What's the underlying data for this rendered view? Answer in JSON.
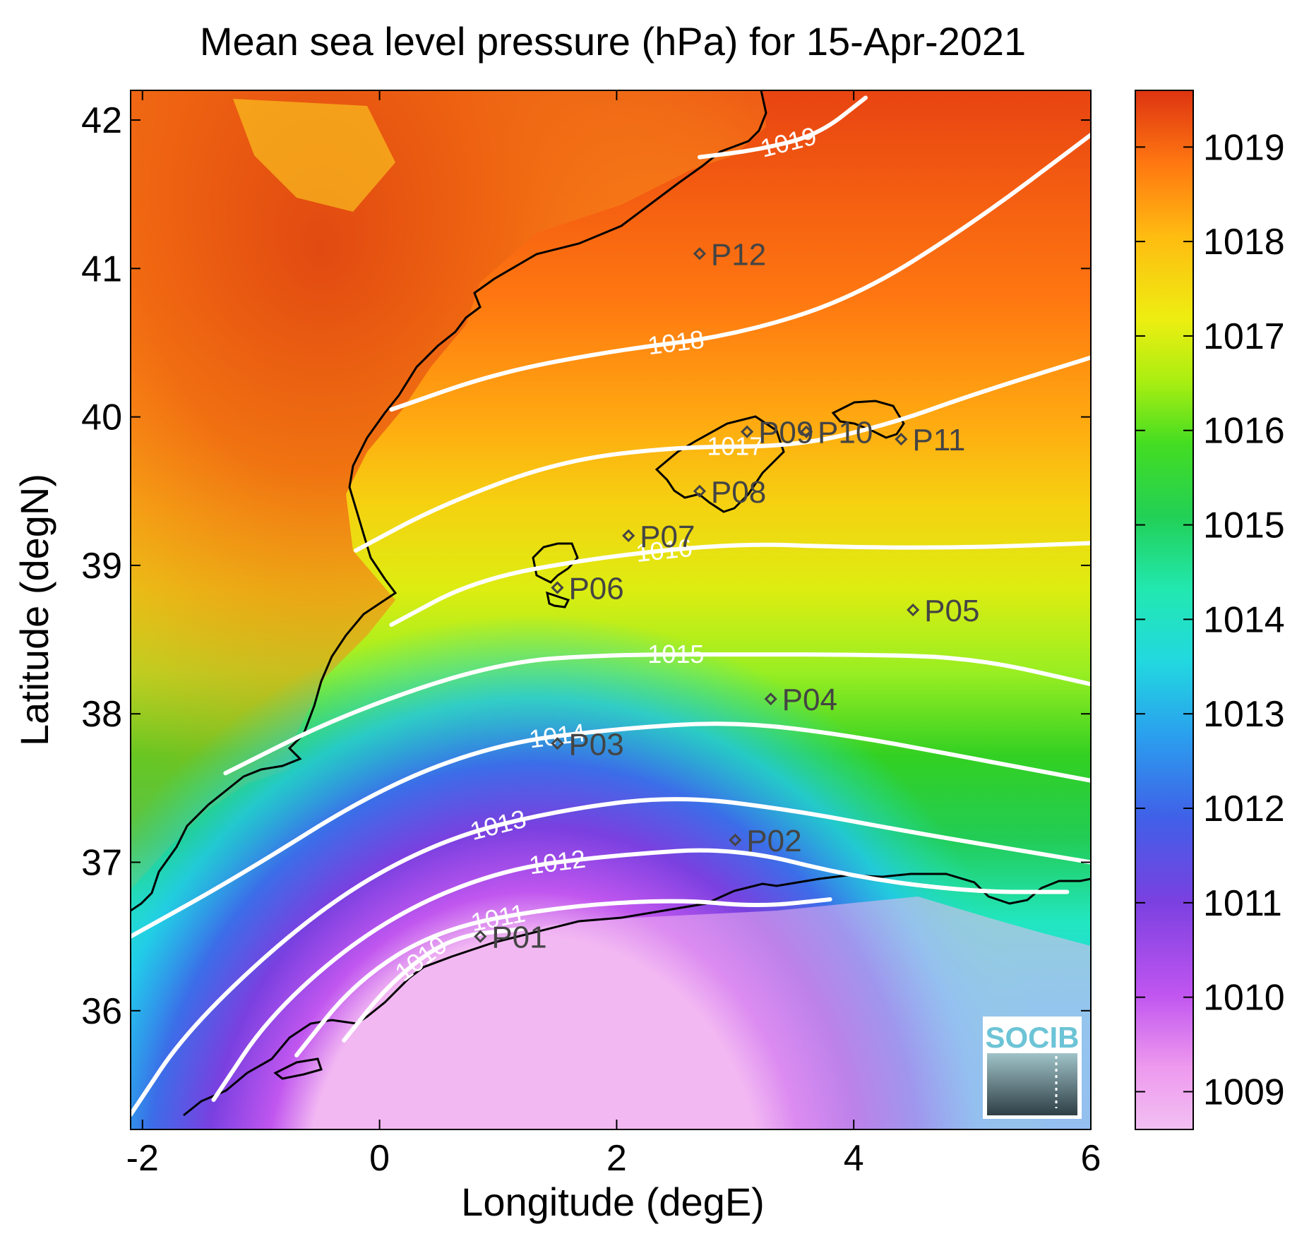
{
  "chart_data": {
    "type": "heatmap",
    "title": "Mean sea level pressure (hPa) for 15-Apr-2021",
    "xlabel": "Longitude (degE)",
    "ylabel": "Latitude (degN)",
    "xlim": [
      -2.1,
      6.0
    ],
    "ylim": [
      35.2,
      42.2
    ],
    "x_ticks": [
      -2,
      0,
      2,
      4,
      6
    ],
    "y_ticks": [
      36,
      37,
      38,
      39,
      40,
      41,
      42
    ],
    "colorbar": {
      "range": [
        1008.6,
        1019.6
      ],
      "ticks": [
        1009,
        1010,
        1011,
        1012,
        1013,
        1014,
        1015,
        1016,
        1017,
        1018,
        1019
      ],
      "colors": [
        "#f2b8f2",
        "#b444ee",
        "#6644dd",
        "#3366ee",
        "#22bbee",
        "#22eecc",
        "#22cc44",
        "#99ee22",
        "#eeee11",
        "#ffaa11",
        "#dd3311"
      ]
    },
    "contours": [
      {
        "level": 1019,
        "label": "1019",
        "points": [
          [
            2.7,
            41.75
          ],
          [
            3.2,
            41.8
          ],
          [
            3.7,
            41.9
          ],
          [
            4.1,
            42.15
          ]
        ]
      },
      {
        "level": 1018,
        "label": "1018",
        "points": [
          [
            0.1,
            40.05
          ],
          [
            1,
            40.3
          ],
          [
            2,
            40.45
          ],
          [
            3,
            40.55
          ],
          [
            4,
            40.8
          ],
          [
            5,
            41.3
          ],
          [
            6,
            41.9
          ]
        ]
      },
      {
        "level": 1017,
        "label": "1017",
        "points": [
          [
            -0.2,
            39.1
          ],
          [
            0.5,
            39.4
          ],
          [
            1.5,
            39.7
          ],
          [
            2.5,
            39.8
          ],
          [
            3.5,
            39.8
          ],
          [
            4.3,
            39.95
          ],
          [
            5,
            40.15
          ],
          [
            6,
            40.4
          ]
        ]
      },
      {
        "level": 1016,
        "label": "1016",
        "points": [
          [
            0.1,
            38.6
          ],
          [
            0.8,
            38.9
          ],
          [
            1.8,
            39.05
          ],
          [
            3,
            39.15
          ],
          [
            4,
            39.12
          ],
          [
            5,
            39.12
          ],
          [
            6,
            39.15
          ]
        ]
      },
      {
        "level": 1015,
        "label": "1015",
        "points": [
          [
            -1.3,
            37.6
          ],
          [
            -0.3,
            38.0
          ],
          [
            1,
            38.35
          ],
          [
            2,
            38.4
          ],
          [
            3,
            38.4
          ],
          [
            4,
            38.4
          ],
          [
            5,
            38.38
          ],
          [
            6,
            38.2
          ]
        ]
      },
      {
        "level": 1014,
        "label": "1014",
        "points": [
          [
            -2.1,
            36.5
          ],
          [
            -1.2,
            36.9
          ],
          [
            0,
            37.5
          ],
          [
            1,
            37.8
          ],
          [
            2,
            37.9
          ],
          [
            3,
            37.95
          ],
          [
            4,
            37.85
          ],
          [
            5,
            37.7
          ],
          [
            6,
            37.55
          ]
        ]
      },
      {
        "level": 1013,
        "label": "1013",
        "points": [
          [
            -2.1,
            35.3
          ],
          [
            -1.6,
            35.9
          ],
          [
            -0.5,
            36.7
          ],
          [
            0.5,
            37.15
          ],
          [
            1.5,
            37.35
          ],
          [
            2.5,
            37.45
          ],
          [
            3.5,
            37.35
          ],
          [
            4.5,
            37.2
          ],
          [
            6,
            37.0
          ]
        ]
      },
      {
        "level": 1012,
        "label": "1012",
        "points": [
          [
            -1.4,
            35.4
          ],
          [
            -0.9,
            36.0
          ],
          [
            0,
            36.6
          ],
          [
            1,
            36.95
          ],
          [
            2,
            37.05
          ],
          [
            3,
            37.1
          ],
          [
            4,
            36.9
          ],
          [
            5,
            36.8
          ],
          [
            5.8,
            36.8
          ]
        ]
      },
      {
        "level": 1011,
        "label": "1011",
        "points": [
          [
            -0.7,
            35.7
          ],
          [
            -0.2,
            36.2
          ],
          [
            0.5,
            36.55
          ],
          [
            1.5,
            36.7
          ],
          [
            2.5,
            36.75
          ],
          [
            3.2,
            36.7
          ],
          [
            3.8,
            36.75
          ]
        ]
      },
      {
        "level": 1010,
        "label": "1010",
        "points": [
          [
            -0.3,
            35.8
          ],
          [
            0.1,
            36.2
          ],
          [
            0.6,
            36.5
          ],
          [
            1.2,
            36.55
          ]
        ]
      }
    ],
    "stations": [
      {
        "id": "P01",
        "lon": 0.85,
        "lat": 36.5
      },
      {
        "id": "P02",
        "lon": 3.0,
        "lat": 37.15
      },
      {
        "id": "P03",
        "lon": 1.5,
        "lat": 37.8
      },
      {
        "id": "P04",
        "lon": 3.3,
        "lat": 38.1
      },
      {
        "id": "P05",
        "lon": 4.5,
        "lat": 38.7
      },
      {
        "id": "P06",
        "lon": 1.5,
        "lat": 38.85
      },
      {
        "id": "P07",
        "lon": 2.1,
        "lat": 39.2
      },
      {
        "id": "P08",
        "lon": 2.7,
        "lat": 39.5
      },
      {
        "id": "P09",
        "lon": 3.1,
        "lat": 39.9
      },
      {
        "id": "P10",
        "lon": 3.6,
        "lat": 39.9
      },
      {
        "id": "P11",
        "lon": 4.4,
        "lat": 39.85
      },
      {
        "id": "P12",
        "lon": 2.7,
        "lat": 41.1
      }
    ],
    "grid": false
  },
  "logo": {
    "text": "SOCIB"
  }
}
